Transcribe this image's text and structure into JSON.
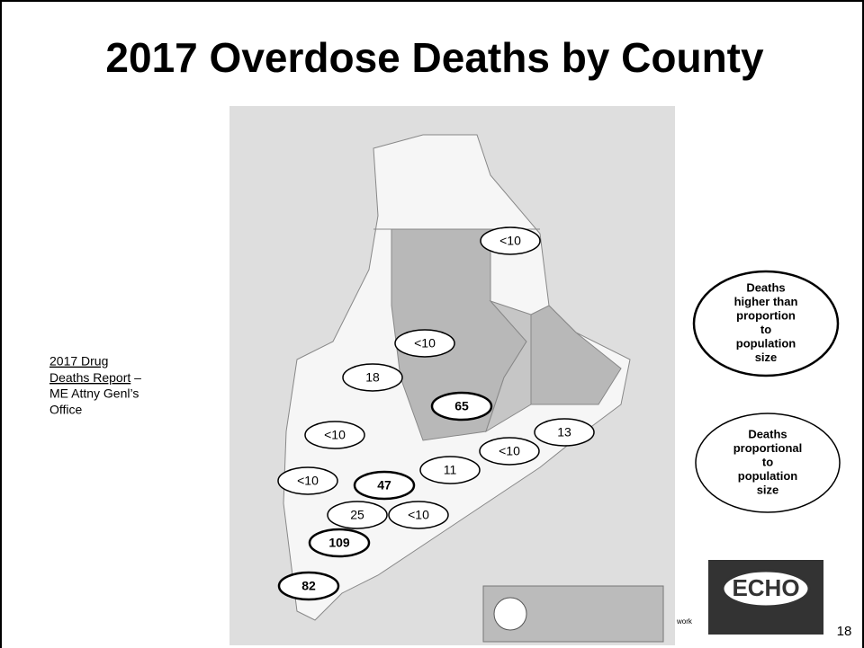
{
  "title": "2017 Overdose Deaths by County",
  "source": {
    "link": [
      "2017 Drug",
      "Deaths Report"
    ],
    "dash": "–",
    "rest": [
      "ME Attny Genl’s",
      "Office"
    ]
  },
  "map_labels": [
    {
      "text": "<10",
      "bold": false
    },
    {
      "text": "<10",
      "bold": false
    },
    {
      "text": "18",
      "bold": false
    },
    {
      "text": "65",
      "bold": true
    },
    {
      "text": "13",
      "bold": false
    },
    {
      "text": "<10",
      "bold": false
    },
    {
      "text": "<10",
      "bold": false
    },
    {
      "text": "11",
      "bold": false
    },
    {
      "text": "<10",
      "bold": false
    },
    {
      "text": "47",
      "bold": true
    },
    {
      "text": "25",
      "bold": false
    },
    {
      "text": "<10",
      "bold": false
    },
    {
      "text": "109",
      "bold": true
    },
    {
      "text": "82",
      "bold": true
    }
  ],
  "legend": [
    {
      "lines": [
        "Deaths",
        "higher than",
        "proportion",
        "to",
        "population",
        "size"
      ]
    },
    {
      "lines": [
        "Deaths",
        "proportional",
        "to",
        "population",
        "size"
      ]
    }
  ],
  "footer_fragment": "work",
  "echo_logo": "ECHO",
  "slide_number": "18"
}
